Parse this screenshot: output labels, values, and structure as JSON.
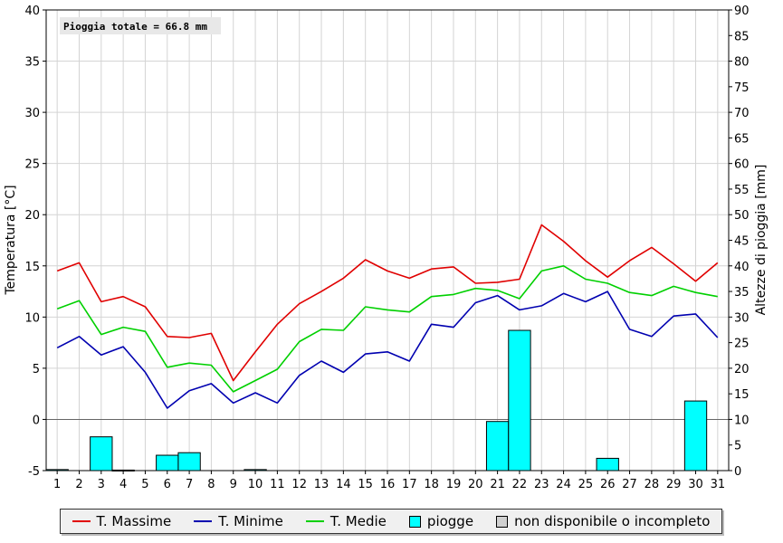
{
  "chart_data": {
    "type": "line+bar",
    "annotation": "Pioggia totale = 66.8 mm",
    "ylabel_left": "Temperatura [°C]",
    "ylabel_right": "Altezze di pioggia [mm]",
    "ylim_left": [
      -5,
      40
    ],
    "ylim_right": [
      0,
      90
    ],
    "yticks_left": [
      -5,
      0,
      5,
      10,
      15,
      20,
      25,
      30,
      35,
      40
    ],
    "yticks_right": [
      0,
      5,
      10,
      15,
      20,
      25,
      30,
      35,
      40,
      45,
      50,
      55,
      60,
      65,
      70,
      75,
      80,
      85,
      90
    ],
    "x": [
      1,
      2,
      3,
      4,
      5,
      6,
      7,
      8,
      9,
      10,
      11,
      12,
      13,
      14,
      15,
      16,
      17,
      18,
      19,
      20,
      21,
      22,
      23,
      24,
      25,
      26,
      27,
      28,
      29,
      30,
      31
    ],
    "grid": true,
    "series": [
      {
        "name": "T. Massime",
        "color": "#e00000",
        "type": "line",
        "values": [
          14.5,
          15.3,
          11.5,
          12.0,
          11.0,
          8.1,
          8.0,
          8.4,
          3.8,
          6.6,
          9.3,
          11.3,
          12.5,
          13.8,
          15.6,
          14.5,
          13.8,
          14.7,
          14.9,
          13.3,
          13.4,
          13.7,
          19.0,
          17.4,
          15.5,
          13.9,
          15.5,
          16.8,
          15.2,
          13.5,
          15.3
        ]
      },
      {
        "name": "T. Minime",
        "color": "#0000b0",
        "type": "line",
        "values": [
          7.0,
          8.1,
          6.3,
          7.1,
          4.6,
          1.1,
          2.8,
          3.5,
          1.6,
          2.6,
          1.6,
          4.3,
          5.7,
          4.6,
          6.4,
          6.6,
          5.7,
          9.3,
          9.0,
          11.4,
          12.1,
          10.7,
          11.1,
          12.3,
          11.5,
          12.5,
          8.8,
          8.1,
          10.1,
          10.3,
          8.0
        ]
      },
      {
        "name": "T. Medie",
        "color": "#00d000",
        "type": "line",
        "values": [
          10.8,
          11.6,
          8.3,
          9.0,
          8.6,
          5.1,
          5.5,
          5.3,
          2.7,
          3.8,
          4.9,
          7.6,
          8.8,
          8.7,
          11.0,
          10.7,
          10.5,
          12.0,
          12.2,
          12.8,
          12.6,
          11.8,
          14.5,
          15.0,
          13.7,
          13.3,
          12.4,
          12.1,
          13.0,
          12.4,
          12.0
        ]
      },
      {
        "name": "piogge",
        "color": "#00ffff",
        "type": "bar",
        "values": [
          0.2,
          0,
          6.6,
          0.1,
          0,
          3.0,
          3.5,
          0,
          0,
          0.2,
          0,
          0,
          0,
          0,
          0,
          0,
          0,
          0,
          0,
          0,
          9.6,
          27.4,
          0,
          0,
          0,
          2.4,
          0,
          0,
          0,
          13.6,
          0
        ]
      }
    ],
    "legend": {
      "position": "bottom",
      "items": [
        {
          "label": "T. Massime",
          "kind": "line",
          "color": "#e00000"
        },
        {
          "label": "T. Minime",
          "kind": "line",
          "color": "#0000b0"
        },
        {
          "label": "T. Medie",
          "kind": "line",
          "color": "#00d000"
        },
        {
          "label": "piogge",
          "kind": "box",
          "color": "#00ffff"
        },
        {
          "label": "non disponibile o incompleto",
          "kind": "box",
          "color": "#d0d0d0"
        }
      ]
    }
  }
}
